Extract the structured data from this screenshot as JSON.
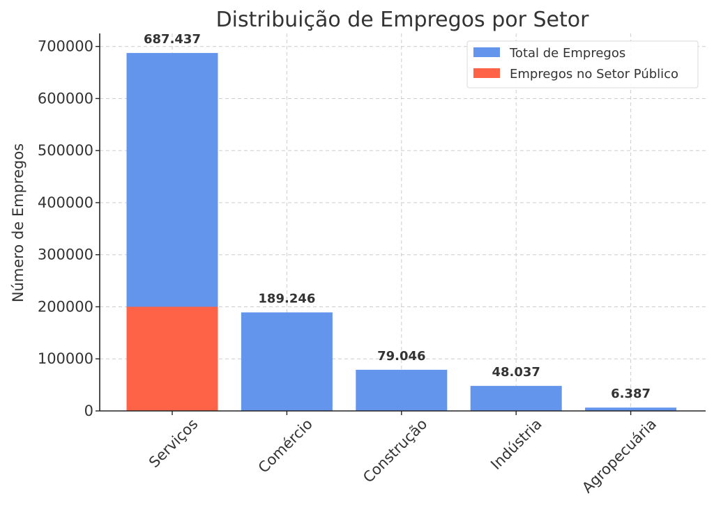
{
  "chart_data": {
    "type": "bar",
    "title": "Distribuição de Empregos por Setor",
    "xlabel": "",
    "ylabel": "Número de Empregos",
    "categories": [
      "Serviços",
      "Comércio",
      "Construção",
      "Indústria",
      "Agropecuária"
    ],
    "series": [
      {
        "name": "Total de Empregos",
        "color": "#6495ED",
        "values": [
          687437,
          189246,
          79046,
          48037,
          6387
        ]
      },
      {
        "name": "Empregos no Setor Público",
        "color": "#FF6347",
        "values": [
          200000,
          null,
          null,
          null,
          null
        ]
      }
    ],
    "data_labels": [
      "687.437",
      "189.246",
      "79.046",
      "48.037",
      "6.387"
    ],
    "ylim": [
      0,
      725000
    ],
    "yticks": [
      0,
      100000,
      200000,
      300000,
      400000,
      500000,
      600000,
      700000
    ],
    "ytick_labels": [
      "0",
      "100000",
      "200000",
      "300000",
      "400000",
      "500000",
      "600000",
      "700000"
    ],
    "grid": true,
    "legend_position": "top-right"
  }
}
